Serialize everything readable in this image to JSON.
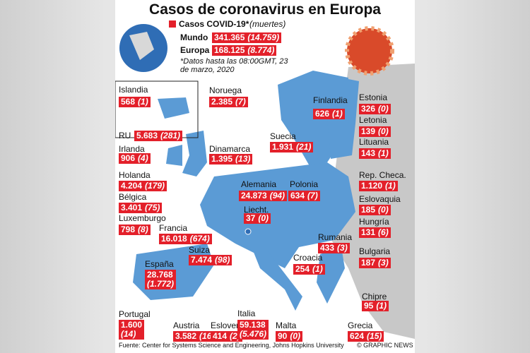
{
  "header": {
    "title": "Casos de coronavirus en Europa",
    "legend_label": "Casos COVID-19*",
    "legend_deaths": "(muertes)",
    "note": "*Datos hasta las 08:00GMT, 23 de marzo, 2020"
  },
  "totals": [
    {
      "name": "Mundo",
      "cases": "341.365",
      "deaths": "(14.759)"
    },
    {
      "name": "Europa",
      "cases": "168.125",
      "deaths": "(8.774)"
    }
  ],
  "regions": [
    {
      "name": "Islandia",
      "cases": "568",
      "deaths": "(1)"
    },
    {
      "name": "Noruega",
      "cases": "2.385",
      "deaths": "(7)"
    },
    {
      "name": "Finlandia",
      "cases": "626",
      "deaths": "(1)"
    },
    {
      "name": "Estonia",
      "cases": "326",
      "deaths": "(0)"
    },
    {
      "name": "Letonia",
      "cases": "139",
      "deaths": "(0)"
    },
    {
      "name": "Lituania",
      "cases": "143",
      "deaths": "(1)"
    },
    {
      "name": "RU",
      "cases": "5.683",
      "deaths": "(281)"
    },
    {
      "name": "Irlanda",
      "cases": "906",
      "deaths": "(4)"
    },
    {
      "name": "Dinamarca",
      "cases": "1.395",
      "deaths": "(13)"
    },
    {
      "name": "Suecia",
      "cases": "1.931",
      "deaths": "(21)"
    },
    {
      "name": "Holanda",
      "cases": "4.204",
      "deaths": "(179)"
    },
    {
      "name": "Rep. Checa.",
      "cases": "1.120",
      "deaths": "(1)"
    },
    {
      "name": "Alemania",
      "cases": "24.873",
      "deaths": "(94)"
    },
    {
      "name": "Polonia",
      "cases": "634",
      "deaths": "(7)"
    },
    {
      "name": "Bélgica",
      "cases": "3.401",
      "deaths": "(75)"
    },
    {
      "name": "Eslovaquia",
      "cases": "185",
      "deaths": "(0)"
    },
    {
      "name": "Liecht.",
      "cases": "37",
      "deaths": "(0)"
    },
    {
      "name": "Luxemburgo",
      "cases": "798",
      "deaths": "(8)"
    },
    {
      "name": "Francia",
      "cases": "16.018",
      "deaths": "(674)"
    },
    {
      "name": "Hungría",
      "cases": "131",
      "deaths": "(6)"
    },
    {
      "name": "Rumania",
      "cases": "433",
      "deaths": "(3)"
    },
    {
      "name": "Suiza",
      "cases": "7.474",
      "deaths": "(98)"
    },
    {
      "name": "España",
      "cases": "28.768",
      "deaths": "(1.772)"
    },
    {
      "name": "Bulgaria",
      "cases": "187",
      "deaths": "(3)"
    },
    {
      "name": "Croacia",
      "cases": "254",
      "deaths": "(1)"
    },
    {
      "name": "Chipre",
      "cases": "95",
      "deaths": "(1)"
    },
    {
      "name": "Portugal",
      "cases": "1.600",
      "deaths": "(14)"
    },
    {
      "name": "Austria",
      "cases": "3.582",
      "deaths": "(16)"
    },
    {
      "name": "Eslovenia",
      "cases": "414",
      "deaths": "(2)"
    },
    {
      "name": "Italia",
      "cases": "59.138",
      "deaths": "(5.476)"
    },
    {
      "name": "Malta",
      "cases": "90",
      "deaths": "(0)"
    },
    {
      "name": "Grecia",
      "cases": "624",
      "deaths": "(15)"
    }
  ],
  "footer": {
    "source": "Fuente: Center for Systems Science and Engineering, Johns Hopkins University",
    "credit": "© GRAPHIC NEWS"
  }
}
